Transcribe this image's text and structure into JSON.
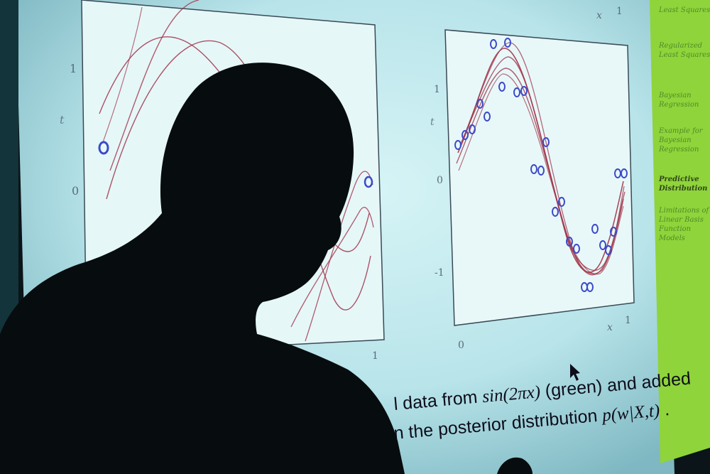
{
  "screen": {
    "background_color": "#bfe7ec",
    "sidebar_color": "#8fd43a",
    "sidebar_items": [
      {
        "label": "Least Squares",
        "active": false
      },
      {
        "label": "Regularized Least Squares",
        "active": false
      },
      {
        "label": "Bayesian Regression",
        "active": false
      },
      {
        "label": "Example for Bayesian Regression",
        "active": false
      },
      {
        "label": "Predictive Distribution",
        "active": true
      },
      {
        "label": "Limitations of Linear Basis Function Models",
        "active": false
      }
    ]
  },
  "left_plot": {
    "tick_labels": {
      "y_top": "1",
      "y_mid": "0",
      "x_right": "1"
    },
    "axis_label_y": "t"
  },
  "right_plot": {
    "tick_labels": {
      "y_top": "1",
      "y_mid": "0",
      "y_bottom": "-1",
      "x_left": "0",
      "x_right": "1"
    },
    "axis_label_y": "t",
    "axis_label_x": "x",
    "top_labels": {
      "x": "x",
      "one": "1"
    }
  },
  "caption": {
    "line1_prefix": "l data from ",
    "line1_math": "sin(2πx)",
    "line1_suffix": " (green) and added",
    "line2_prefix": "n the posterior distribution ",
    "line2_math": "p(w|X,t)",
    "line2_suffix": " ."
  },
  "colors": {
    "curve": "#a0354a",
    "point": "#3c49c9",
    "silhouette": "#070c0e",
    "caption": "#0d0d1a"
  }
}
